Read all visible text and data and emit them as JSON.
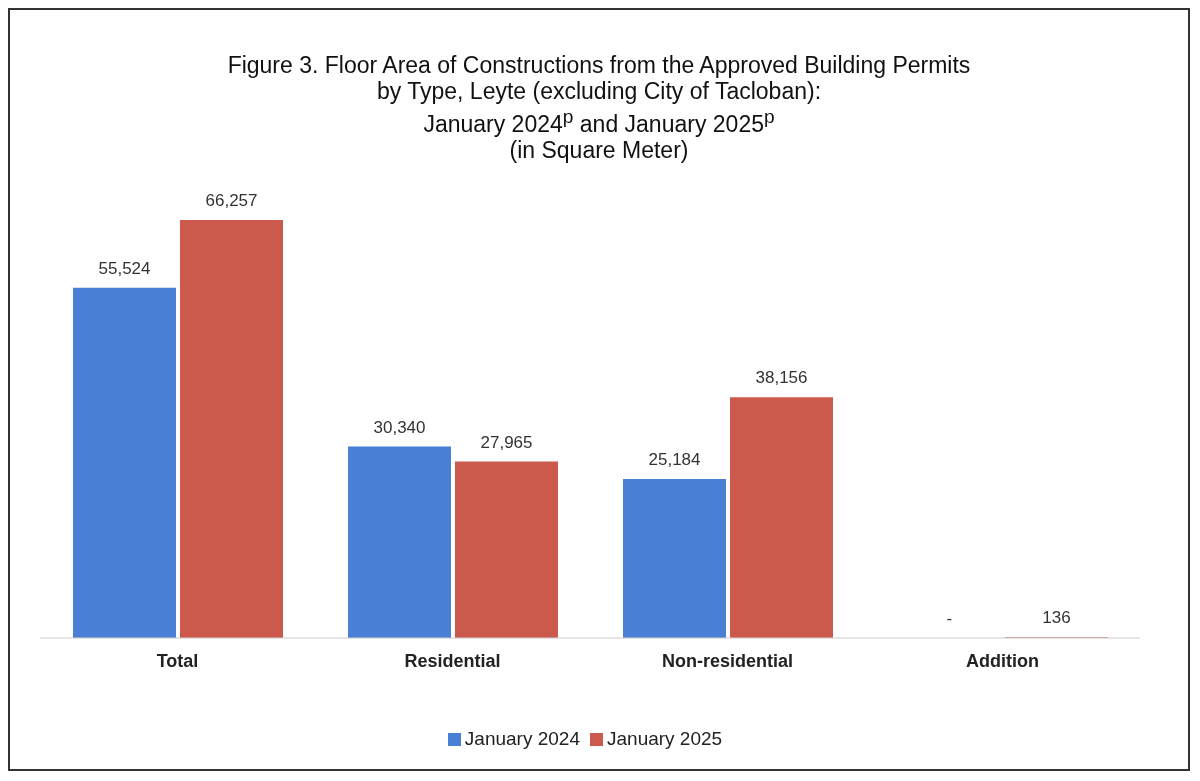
{
  "chart_data": {
    "type": "bar",
    "title": "Figure 3. Floor Area of Constructions from the Approved Building Permits\nby Type, Leyte (excluding City of Tacloban):\nJanuary 2024$^{p}$ and January 2025$^{p}$\n(in Square Meter)",
    "categories": [
      "Total",
      "Residential",
      "Non-residential",
      "Addition"
    ],
    "series": [
      {
        "name": "January 2024",
        "color": "#4a7fd6",
        "values": [
          55524,
          30340,
          25184,
          null
        ],
        "value_labels": [
          "55,524",
          "30,340",
          "25,184",
          null
        ]
      },
      {
        "name": "January 2025",
        "color": "#cc5a4c",
        "values": [
          66257,
          27965,
          38156,
          136
        ],
        "value_labels": [
          "66,257",
          "27,965",
          "38,156",
          "136"
        ]
      }
    ],
    "annotations": [
      "-"
    ],
    "legend": "bottom",
    "grid": false
  }
}
